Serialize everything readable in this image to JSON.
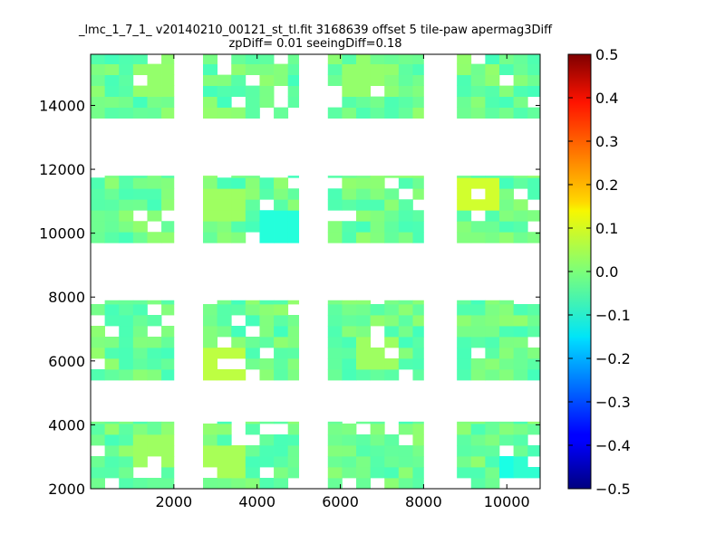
{
  "chart_data": {
    "type": "heatmap",
    "title_line1": "_lmc_1_7_1_ v20140210_00121_st_tl.fit 3168639 offset 5 tile-paw apermag3Diff",
    "title_line2": "zpDiff= 0.01 seeingDiff=0.18",
    "xlabel": "",
    "ylabel": "",
    "xlim": [
      0,
      10800
    ],
    "ylim": [
      2000,
      15600
    ],
    "x_ticks": [
      2000,
      4000,
      6000,
      8000,
      10000
    ],
    "y_ticks": [
      2000,
      4000,
      6000,
      8000,
      10000,
      12000,
      14000
    ],
    "x_tick_labels": [
      "2000",
      "4000",
      "6000",
      "8000",
      "10000"
    ],
    "y_tick_labels": [
      "2000",
      "4000",
      "6000",
      "8000",
      "10000",
      "12000",
      "14000"
    ],
    "colormap": "jet",
    "colorbar": {
      "range": [
        -0.5,
        0.5
      ],
      "ticks": [
        0.5,
        0.4,
        0.3,
        0.2,
        0.1,
        0.0,
        -0.1,
        -0.2,
        -0.3,
        -0.4,
        -0.5
      ],
      "tick_labels": [
        "0.5",
        "0.4",
        "0.3",
        "0.2",
        "0.1",
        "0.0",
        "−0.1",
        "−0.2",
        "−0.3",
        "−0.4",
        "−0.5"
      ]
    },
    "grid": false,
    "cell_size": 340,
    "row_bands": [
      [
        2000,
        4100
      ],
      [
        5400,
        7900
      ],
      [
        9700,
        11800
      ],
      [
        13600,
        15600
      ]
    ],
    "col_bands": [
      [
        0,
        2000
      ],
      [
        2700,
        5000
      ],
      [
        5700,
        8000
      ],
      [
        8800,
        10800
      ]
    ],
    "baseline_value": -0.02,
    "patches": [
      {
        "x": 1500,
        "y": 14500,
        "value": 0.02
      },
      {
        "x": 3200,
        "y": 10800,
        "value": 0.03
      },
      {
        "x": 4500,
        "y": 9900,
        "value": -0.09
      },
      {
        "x": 9000,
        "y": 11000,
        "value": 0.08
      },
      {
        "x": 2900,
        "y": 5700,
        "value": 0.06
      },
      {
        "x": 3200,
        "y": 2800,
        "value": 0.04
      },
      {
        "x": 6800,
        "y": 6000,
        "value": 0.03
      },
      {
        "x": 10200,
        "y": 2300,
        "value": -0.1
      },
      {
        "x": 10500,
        "y": 2400,
        "value": -0.08
      },
      {
        "x": 1200,
        "y": 3100,
        "value": 0.03
      },
      {
        "x": 6400,
        "y": 14500,
        "value": 0.02
      }
    ]
  }
}
